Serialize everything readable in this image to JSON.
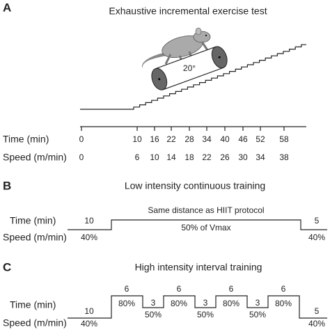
{
  "panel_a": {
    "label": "A",
    "title": "Exhaustive incremental exercise test",
    "angle_label": "20°",
    "time_label": "Time (min)",
    "speed_label": "Speed (m/min)",
    "time_values": [
      0,
      10,
      16,
      22,
      28,
      34,
      40,
      46,
      52,
      58
    ],
    "speed_values": [
      0,
      6,
      10,
      14,
      18,
      22,
      26,
      30,
      34,
      38
    ]
  },
  "panel_b": {
    "label": "B",
    "title": "Low intensity continuous training",
    "time_label": "Time (min)",
    "speed_label": "Speed (m/min)",
    "warmup_time": "10",
    "warmup_speed": "40%",
    "main_note": "Same distance as HIIT protocol",
    "main_speed": "50% of Vmax",
    "cooldown_time": "5",
    "cooldown_speed": "40%"
  },
  "panel_c": {
    "label": "C",
    "title": "High intensity interval training",
    "time_label": "Time (min)",
    "speed_label": "Speed (m/min)",
    "warmup_time": "10",
    "warmup_speed": "40%",
    "intervals": [
      {
        "high_time": "6",
        "high_speed": "80%",
        "low_time": "3",
        "low_speed": "50%"
      },
      {
        "high_time": "6",
        "high_speed": "80%",
        "low_time": "3",
        "low_speed": "50%"
      },
      {
        "high_time": "6",
        "high_speed": "80%",
        "low_time": "3",
        "low_speed": "50%"
      },
      {
        "high_time": "6",
        "high_speed": "80%"
      }
    ],
    "cooldown_time": "5",
    "cooldown_speed": "40%"
  }
}
